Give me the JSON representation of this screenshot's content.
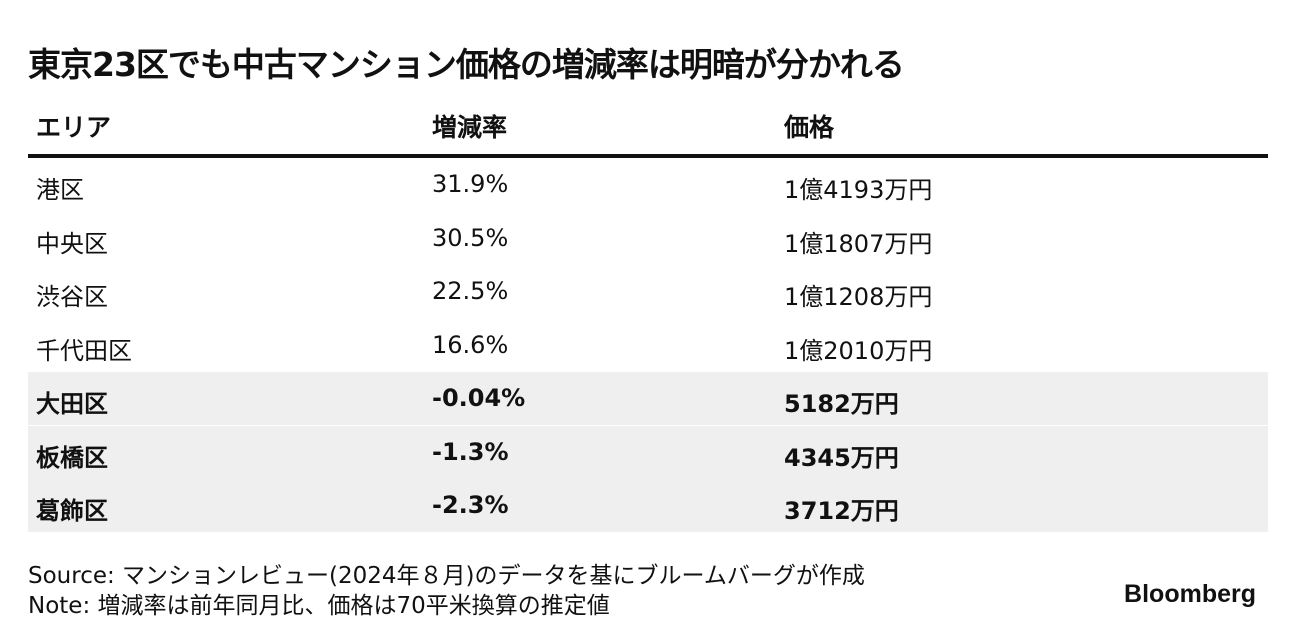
{
  "header": {
    "title": "東京23区でも中古マンション価格の増減率は明暗が分かれる"
  },
  "table": {
    "columns": [
      "エリア",
      "増減率",
      "価格"
    ],
    "rows": [
      [
        "港区",
        "31.9%",
        "1億4193万円"
      ],
      [
        "中央区",
        "30.5%",
        "1億1807万円"
      ],
      [
        "渋谷区",
        "22.5%",
        "1億1208万円"
      ],
      [
        "千代田区",
        "16.6%",
        "1億2010万円"
      ],
      [
        "大田区",
        "-0.04%",
        "5182万円"
      ],
      [
        "板橋区",
        "-1.3%",
        "4345万円"
      ],
      [
        "葛飾区",
        "-2.3%",
        "3712万円"
      ]
    ]
  },
  "footer": {
    "source": "Source: マンションレビュー(2024年８月)のデータを基にブルームバーグが作成",
    "note": "Note: 増減率は前年同月比、価格は70平米換算の推定値",
    "brand": "Bloomberg"
  }
}
